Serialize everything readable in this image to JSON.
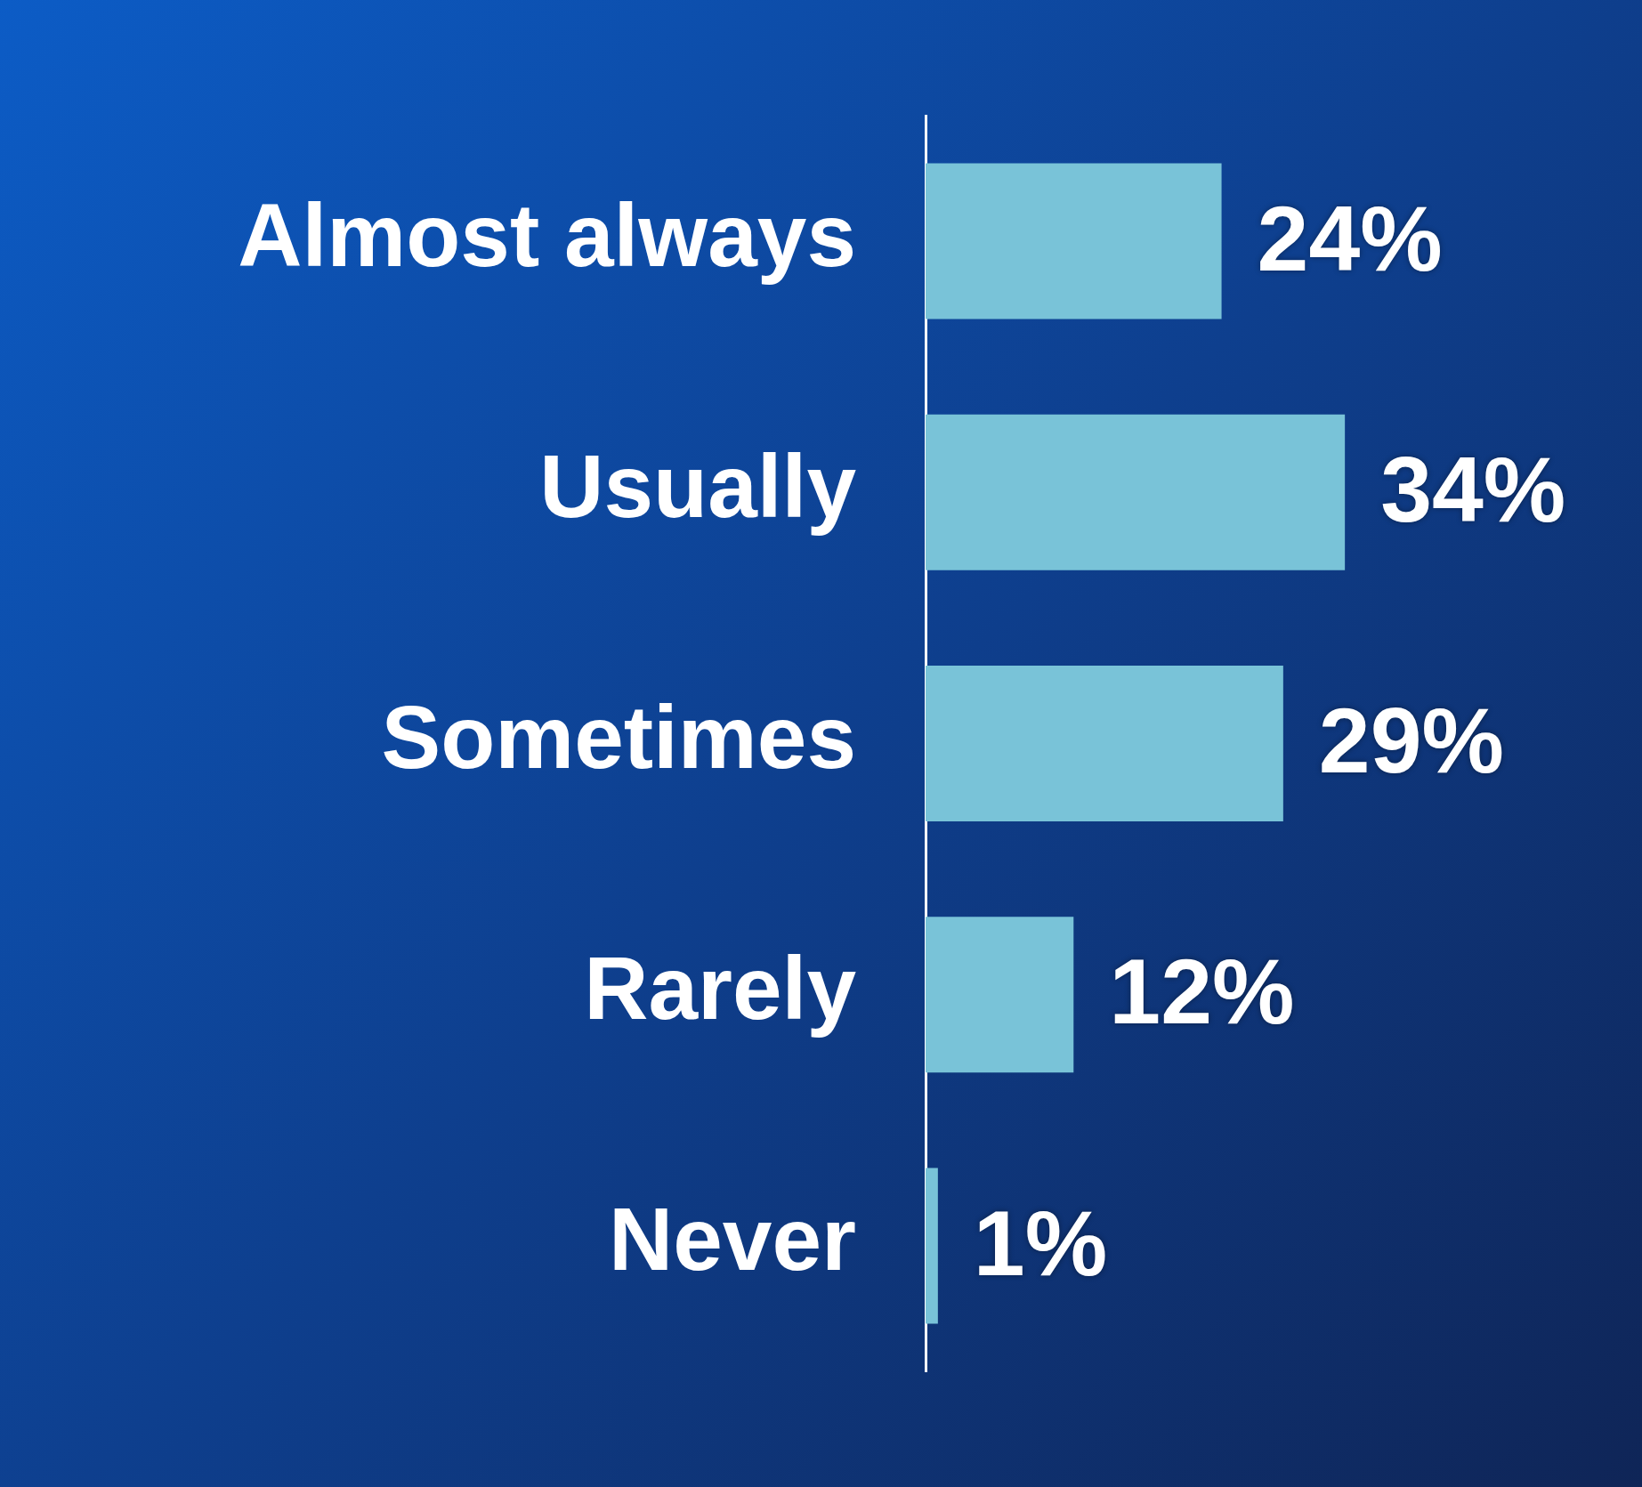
{
  "chart_data": {
    "type": "bar",
    "orientation": "horizontal",
    "categories": [
      "Almost always",
      "Usually",
      "Sometimes",
      "Rarely",
      "Never"
    ],
    "values": [
      24,
      34,
      29,
      12,
      1
    ],
    "value_labels": [
      "24%",
      "34%",
      "29%",
      "12%",
      "1%"
    ],
    "color": "#79c3d8",
    "tick_labels": "y"
  }
}
